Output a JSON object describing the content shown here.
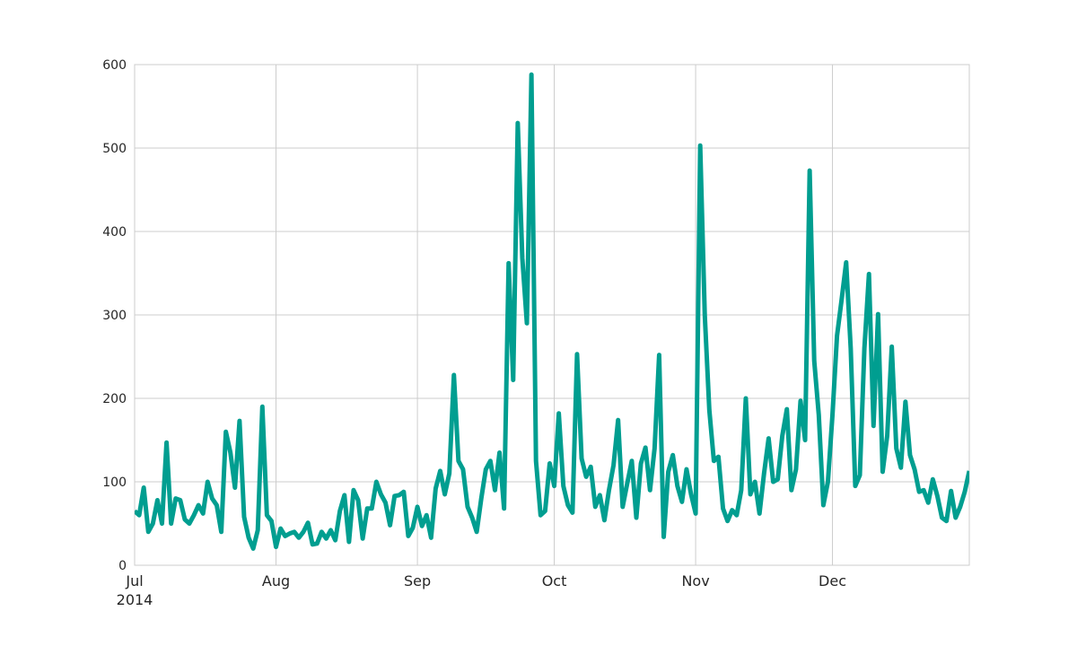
{
  "chart_data": {
    "type": "line",
    "title": "",
    "xlabel": "",
    "ylabel": "",
    "x_range": [
      "2014-07-01",
      "2014-12-31"
    ],
    "ylim": [
      0,
      600
    ],
    "grid": true,
    "legend": "none",
    "line_color": "#009E90",
    "x_ticks": [
      {
        "date": "2014-07-01",
        "label": "Jul"
      },
      {
        "date": "2014-08-01",
        "label": "Aug"
      },
      {
        "date": "2014-09-01",
        "label": "Sep"
      },
      {
        "date": "2014-10-01",
        "label": "Oct"
      },
      {
        "date": "2014-11-01",
        "label": "Nov"
      },
      {
        "date": "2014-12-01",
        "label": "Dec"
      }
    ],
    "x_year_label": "2014",
    "y_ticks": [
      0,
      100,
      200,
      300,
      400,
      500,
      600
    ],
    "series": [
      {
        "x": [
          "2014-07-01",
          "2014-07-02",
          "2014-07-03",
          "2014-07-04",
          "2014-07-05",
          "2014-07-06",
          "2014-07-07",
          "2014-07-08",
          "2014-07-09",
          "2014-07-10",
          "2014-07-11",
          "2014-07-12",
          "2014-07-13",
          "2014-07-14",
          "2014-07-15",
          "2014-07-16",
          "2014-07-17",
          "2014-07-18",
          "2014-07-19",
          "2014-07-20",
          "2014-07-21",
          "2014-07-22",
          "2014-07-23",
          "2014-07-24",
          "2014-07-25",
          "2014-07-26",
          "2014-07-27",
          "2014-07-28",
          "2014-07-29",
          "2014-07-30",
          "2014-07-31",
          "2014-08-01",
          "2014-08-02",
          "2014-08-03",
          "2014-08-04",
          "2014-08-05",
          "2014-08-06",
          "2014-08-07",
          "2014-08-08",
          "2014-08-09",
          "2014-08-10",
          "2014-08-11",
          "2014-08-12",
          "2014-08-13",
          "2014-08-14",
          "2014-08-15",
          "2014-08-16",
          "2014-08-17",
          "2014-08-18",
          "2014-08-19",
          "2014-08-20",
          "2014-08-21",
          "2014-08-22",
          "2014-08-23",
          "2014-08-24",
          "2014-08-25",
          "2014-08-26",
          "2014-08-27",
          "2014-08-28",
          "2014-08-29",
          "2014-08-30",
          "2014-08-31",
          "2014-09-01",
          "2014-09-02",
          "2014-09-03",
          "2014-09-04",
          "2014-09-05",
          "2014-09-06",
          "2014-09-07",
          "2014-09-08",
          "2014-09-09",
          "2014-09-10",
          "2014-09-11",
          "2014-09-12",
          "2014-09-13",
          "2014-09-14",
          "2014-09-15",
          "2014-09-16",
          "2014-09-17",
          "2014-09-18",
          "2014-09-19",
          "2014-09-20",
          "2014-09-21",
          "2014-09-22",
          "2014-09-23",
          "2014-09-24",
          "2014-09-25",
          "2014-09-26",
          "2014-09-27",
          "2014-09-28",
          "2014-09-29",
          "2014-09-30",
          "2014-10-01",
          "2014-10-02",
          "2014-10-03",
          "2014-10-04",
          "2014-10-05",
          "2014-10-06",
          "2014-10-07",
          "2014-10-08",
          "2014-10-09",
          "2014-10-10",
          "2014-10-11",
          "2014-10-12",
          "2014-10-13",
          "2014-10-14",
          "2014-10-15",
          "2014-10-16",
          "2014-10-17",
          "2014-10-18",
          "2014-10-19",
          "2014-10-20",
          "2014-10-21",
          "2014-10-22",
          "2014-10-23",
          "2014-10-24",
          "2014-10-25",
          "2014-10-26",
          "2014-10-27",
          "2014-10-28",
          "2014-10-29",
          "2014-10-30",
          "2014-10-31",
          "2014-11-01",
          "2014-11-02",
          "2014-11-03",
          "2014-11-04",
          "2014-11-05",
          "2014-11-06",
          "2014-11-07",
          "2014-11-08",
          "2014-11-09",
          "2014-11-10",
          "2014-11-11",
          "2014-11-12",
          "2014-11-13",
          "2014-11-14",
          "2014-11-15",
          "2014-11-16",
          "2014-11-17",
          "2014-11-18",
          "2014-11-19",
          "2014-11-20",
          "2014-11-21",
          "2014-11-22",
          "2014-11-23",
          "2014-11-24",
          "2014-11-25",
          "2014-11-26",
          "2014-11-27",
          "2014-11-28",
          "2014-11-29",
          "2014-11-30",
          "2014-12-01",
          "2014-12-02",
          "2014-12-03",
          "2014-12-04",
          "2014-12-05",
          "2014-12-06",
          "2014-12-07",
          "2014-12-08",
          "2014-12-09",
          "2014-12-10",
          "2014-12-11",
          "2014-12-12",
          "2014-12-13",
          "2014-12-14",
          "2014-12-15",
          "2014-12-16",
          "2014-12-17",
          "2014-12-18",
          "2014-12-19",
          "2014-12-20",
          "2014-12-21",
          "2014-12-22",
          "2014-12-23",
          "2014-12-24",
          "2014-12-25",
          "2014-12-26",
          "2014-12-27",
          "2014-12-28",
          "2014-12-29",
          "2014-12-30",
          "2014-12-31"
        ],
        "y": [
          65,
          60,
          93,
          40,
          50,
          78,
          50,
          147,
          50,
          80,
          78,
          55,
          50,
          60,
          72,
          62,
          100,
          80,
          72,
          40,
          160,
          135,
          93,
          173,
          58,
          33,
          20,
          42,
          190,
          60,
          53,
          22,
          44,
          35,
          38,
          40,
          33,
          40,
          51,
          25,
          26,
          40,
          32,
          42,
          30,
          65,
          84,
          28,
          90,
          78,
          32,
          68,
          68,
          100,
          85,
          75,
          48,
          83,
          84,
          88,
          35,
          45,
          70,
          47,
          60,
          33,
          92,
          113,
          85,
          110,
          228,
          125,
          115,
          70,
          57,
          40,
          80,
          115,
          125,
          90,
          135,
          68,
          362,
          222,
          530,
          368,
          290,
          588,
          125,
          60,
          65,
          122,
          95,
          182,
          95,
          72,
          63,
          253,
          128,
          106,
          118,
          70,
          84,
          54,
          90,
          120,
          174,
          70,
          98,
          125,
          57,
          122,
          141,
          90,
          140,
          252,
          34,
          112,
          132,
          95,
          76,
          115,
          85,
          62,
          503,
          300,
          186,
          125,
          130,
          68,
          53,
          66,
          60,
          90,
          200,
          85,
          100,
          62,
          110,
          152,
          100,
          103,
          155,
          187,
          90,
          115,
          197,
          150,
          473,
          245,
          180,
          72,
          100,
          180,
          275,
          318,
          363,
          260,
          95,
          108,
          260,
          349,
          167,
          301,
          112,
          155,
          262,
          140,
          117,
          196,
          132,
          115,
          88,
          90,
          75,
          103,
          83,
          57,
          53,
          89,
          57,
          70,
          88,
          113
        ]
      }
    ]
  }
}
